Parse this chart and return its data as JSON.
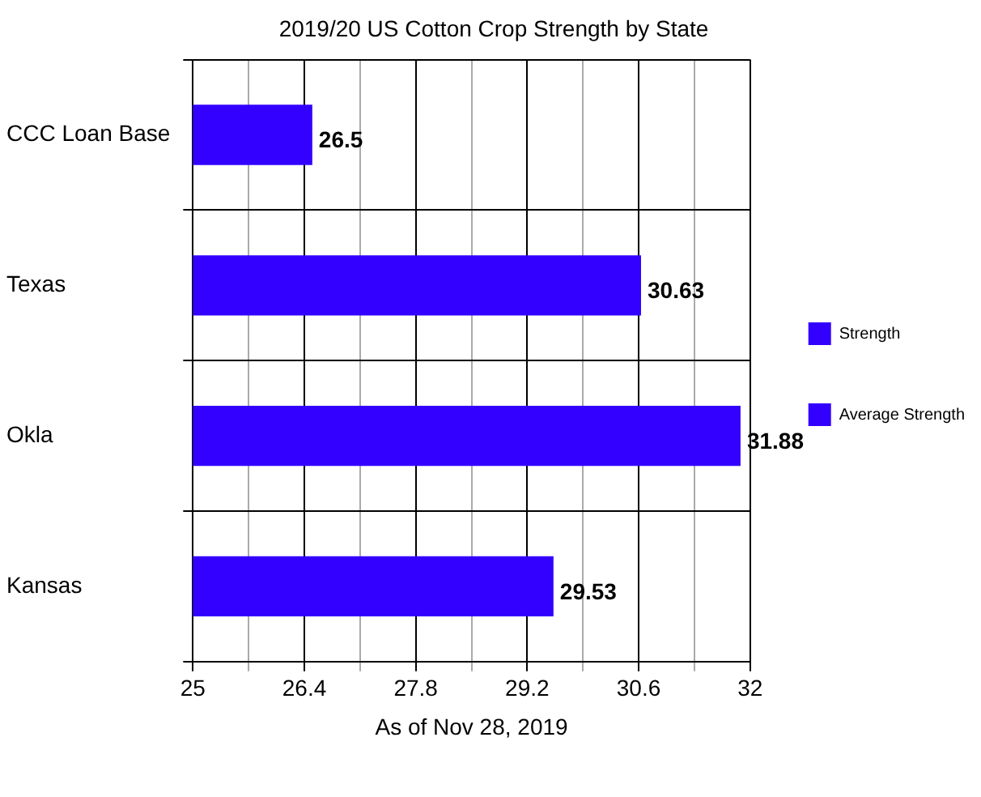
{
  "chart_data": {
    "type": "bar",
    "orientation": "horizontal",
    "stacked": true,
    "title": "2019/20 US Cotton Crop Strength by State",
    "xlabel": "As of Nov 28, 2019",
    "categories": [
      "CCC Loan Base",
      "Texas",
      "Okla",
      "Kansas"
    ],
    "series": [
      {
        "name": "Strength",
        "color": "#3300ff",
        "values": [
          null,
          30.63,
          31.88,
          29.53
        ]
      },
      {
        "name": "Average Strength",
        "color": "#3300ff",
        "values": [
          26.5,
          null,
          null,
          null
        ]
      }
    ],
    "xlim": [
      25,
      32
    ],
    "xticks": [
      25,
      {
        "value": 25.7,
        "label": null
      },
      26.4,
      {
        "value": 27.1,
        "label": null
      },
      27.8,
      {
        "value": 28.5,
        "label": null
      },
      29.2,
      {
        "value": 29.9,
        "label": null
      },
      30.6,
      {
        "value": 31.3,
        "label": null
      },
      32
    ],
    "grid": true,
    "legend": "right",
    "data_labels": true
  }
}
